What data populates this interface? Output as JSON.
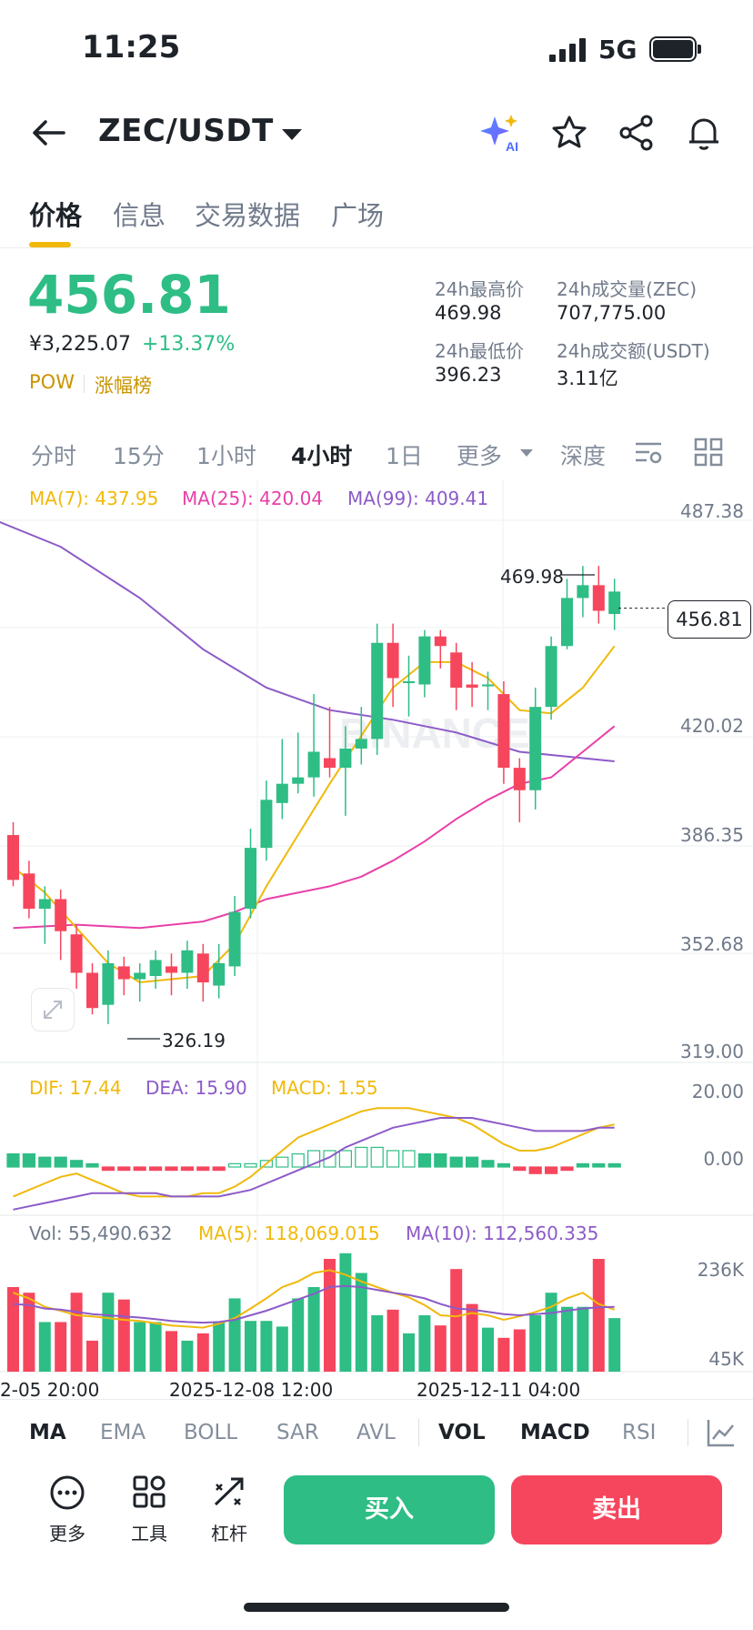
{
  "status_bar": {
    "time": "11:25",
    "network": "5G"
  },
  "header": {
    "pair": "ZEC/USDT",
    "ai_badge": "AI"
  },
  "tabs": [
    {
      "label": "价格",
      "active": true
    },
    {
      "label": "信息",
      "active": false
    },
    {
      "label": "交易数据",
      "active": false
    },
    {
      "label": "广场",
      "active": false
    }
  ],
  "price": {
    "last": "456.81",
    "cny": "¥3,225.07",
    "change": "+13.37%",
    "tag1": "POW",
    "tag2": "涨幅榜",
    "accent_up": "#2ebd85",
    "accent_down": "#f6465d"
  },
  "stats": {
    "high_label": "24h最高价",
    "high_value": "469.98",
    "low_label": "24h最低价",
    "low_value": "396.23",
    "vol_label": "24h成交量(ZEC)",
    "vol_value": "707,775.00",
    "amount_label": "24h成交额(USDT)",
    "amount_value": "3.11亿"
  },
  "intervals": [
    "分时",
    "15分",
    "1小时",
    "4小时",
    "1日",
    "更多",
    "深度"
  ],
  "active_interval": "4小时",
  "legend": {
    "ma7": "MA(7): 437.95",
    "ma25": "MA(25): 420.04",
    "ma99": "MA(99): 409.41",
    "dif": "DIF: 17.44",
    "dea": "DEA: 15.90",
    "macd": "MACD: 1.55",
    "vol": "Vol: 55,490.632",
    "vma5": "MA(5): 118,069.015",
    "vma10": "MA(10): 112,560.335"
  },
  "chart_data": {
    "type": "candlestick",
    "price_axis": [
      "487.38",
      "420.02",
      "386.35",
      "352.68",
      "319.00"
    ],
    "macd_axis": [
      "20.00",
      "0.00"
    ],
    "volume_axis": [
      "236K",
      "45K"
    ],
    "time_axis": [
      "2-05 20:00",
      "2025-12-08 12:00",
      "2025-12-11 04:00"
    ],
    "high_marker": "469.98",
    "low_marker": "326.19",
    "current_price": "456.81",
    "price_min": 319.0,
    "price_max": 487.38,
    "candles": [
      [
        386,
        372,
        390,
        370
      ],
      [
        374,
        363,
        378,
        360
      ],
      [
        363,
        366,
        370,
        352
      ],
      [
        366,
        356,
        369,
        347
      ],
      [
        355,
        343,
        358,
        338
      ],
      [
        343,
        332,
        346,
        330
      ],
      [
        333,
        346,
        350,
        327
      ],
      [
        345,
        341,
        348,
        336
      ],
      [
        341,
        343,
        346,
        334
      ],
      [
        342,
        347,
        350,
        338
      ],
      [
        345,
        343,
        349,
        336
      ],
      [
        343,
        350,
        353,
        338
      ],
      [
        349,
        340,
        352,
        334
      ],
      [
        339,
        346,
        352,
        335
      ],
      [
        345,
        362,
        367,
        342
      ],
      [
        363,
        382,
        388,
        360
      ],
      [
        382,
        397,
        403,
        378
      ],
      [
        396,
        402,
        416,
        391
      ],
      [
        402,
        404,
        418,
        399
      ],
      [
        404,
        412,
        430,
        398
      ],
      [
        410,
        407,
        426,
        404
      ],
      [
        407,
        413,
        420,
        392
      ],
      [
        413,
        416,
        426,
        408
      ],
      [
        416,
        446,
        452,
        411
      ],
      [
        446,
        435,
        452,
        426
      ],
      [
        434,
        434,
        442,
        423
      ],
      [
        433,
        448,
        450,
        429
      ],
      [
        448,
        445,
        450,
        438
      ],
      [
        443,
        432,
        446,
        425
      ],
      [
        433,
        432,
        440,
        426
      ],
      [
        433,
        433,
        437,
        425
      ],
      [
        430,
        407,
        434,
        402
      ],
      [
        407,
        400,
        410,
        390
      ],
      [
        400,
        426,
        432,
        394
      ],
      [
        426,
        445,
        448,
        422
      ],
      [
        445,
        460,
        466,
        444
      ],
      [
        460,
        464,
        470,
        454
      ],
      [
        464,
        456,
        470,
        452
      ],
      [
        455,
        462,
        466,
        450
      ]
    ],
    "ma7": [
      [
        0,
        376
      ],
      [
        2,
        368
      ],
      [
        4,
        357
      ],
      [
        6,
        346
      ],
      [
        8,
        340
      ],
      [
        10,
        341
      ],
      [
        12,
        342
      ],
      [
        14,
        352
      ],
      [
        16,
        370
      ],
      [
        18,
        386
      ],
      [
        20,
        402
      ],
      [
        22,
        417
      ],
      [
        24,
        432
      ],
      [
        26,
        440
      ],
      [
        28,
        440
      ],
      [
        30,
        435
      ],
      [
        32,
        425
      ],
      [
        34,
        424
      ],
      [
        36,
        432
      ],
      [
        38,
        445
      ]
    ],
    "ma25": [
      [
        0,
        357
      ],
      [
        4,
        358
      ],
      [
        8,
        357
      ],
      [
        12,
        359
      ],
      [
        14,
        362
      ],
      [
        16,
        366
      ],
      [
        18,
        368
      ],
      [
        20,
        370
      ],
      [
        22,
        373
      ],
      [
        24,
        378
      ],
      [
        26,
        384
      ],
      [
        28,
        391
      ],
      [
        30,
        397
      ],
      [
        32,
        402
      ],
      [
        34,
        404
      ],
      [
        36,
        412
      ],
      [
        38,
        420
      ]
    ],
    "ma99": [
      [
        -1,
        484
      ],
      [
        3,
        476
      ],
      [
        8,
        460
      ],
      [
        12,
        444
      ],
      [
        16,
        432
      ],
      [
        20,
        425
      ],
      [
        24,
        422
      ],
      [
        28,
        418
      ],
      [
        32,
        412
      ],
      [
        36,
        410
      ],
      [
        38,
        409
      ]
    ],
    "macd_hist": [
      4,
      4,
      3,
      3,
      2,
      1,
      -1,
      -1,
      -1,
      -1,
      -1,
      -1,
      -1,
      -1,
      1,
      1,
      2,
      3,
      4,
      5,
      5,
      5,
      6,
      6,
      5,
      5,
      4,
      4,
      3,
      3,
      2,
      1,
      -1,
      -2,
      -2,
      -1,
      1,
      1,
      1
    ],
    "dif": [
      -9,
      -7,
      -5,
      -3,
      -2,
      -4,
      -6,
      -8,
      -9,
      -9,
      -9,
      -9,
      -8,
      -8,
      -6,
      -3,
      1,
      5,
      9,
      11,
      13,
      15,
      17,
      18,
      18,
      18,
      17,
      16,
      15,
      13,
      10,
      7,
      5,
      5,
      6,
      8,
      10,
      12,
      13
    ],
    "dea": [
      -13,
      -12,
      -11,
      -10,
      -9,
      -8,
      -8,
      -8,
      -8,
      -8,
      -9,
      -9,
      -9,
      -9,
      -8,
      -7,
      -5,
      -3,
      -1,
      1,
      3,
      6,
      8,
      10,
      12,
      13,
      14,
      15,
      15,
      15,
      14,
      13,
      12,
      11,
      11,
      11,
      11,
      12,
      12
    ],
    "volume": [
      150,
      140,
      88,
      88,
      140,
      55,
      140,
      128,
      88,
      88,
      72,
      55,
      68,
      88,
      130,
      90,
      90,
      80,
      130,
      150,
      200,
      210,
      175,
      100,
      110,
      68,
      100,
      82,
      182,
      120,
      78,
      60,
      75,
      100,
      140,
      115,
      115,
      200,
      95
    ],
    "vma5": [
      140,
      130,
      115,
      108,
      100,
      98,
      95,
      92,
      90,
      86,
      82,
      80,
      78,
      85,
      95,
      112,
      130,
      150,
      160,
      175,
      180,
      172,
      160,
      150,
      140,
      132,
      118,
      100,
      98,
      104,
      100,
      92,
      98,
      106,
      115,
      130,
      140,
      120,
      110
    ],
    "vma10": [
      120,
      118,
      112,
      110,
      106,
      102,
      100,
      98,
      96,
      93,
      90,
      88,
      87,
      88,
      92,
      100,
      108,
      118,
      128,
      138,
      150,
      152,
      150,
      145,
      140,
      136,
      130,
      120,
      112,
      110,
      106,
      102,
      100,
      102,
      104,
      108,
      112,
      114,
      115
    ]
  },
  "indicators": [
    {
      "label": "MA",
      "on": true
    },
    {
      "label": "EMA",
      "on": false
    },
    {
      "label": "BOLL",
      "on": false
    },
    {
      "label": "SAR",
      "on": false
    },
    {
      "label": "AVL",
      "on": false
    },
    {
      "label": "VOL",
      "on": true
    },
    {
      "label": "MACD",
      "on": true
    },
    {
      "label": "RSI",
      "on": false
    }
  ],
  "actions": {
    "more": "更多",
    "tools": "工具",
    "leverage": "杠杆",
    "buy": "买入",
    "sell": "卖出"
  },
  "watermark": "BINANCE"
}
